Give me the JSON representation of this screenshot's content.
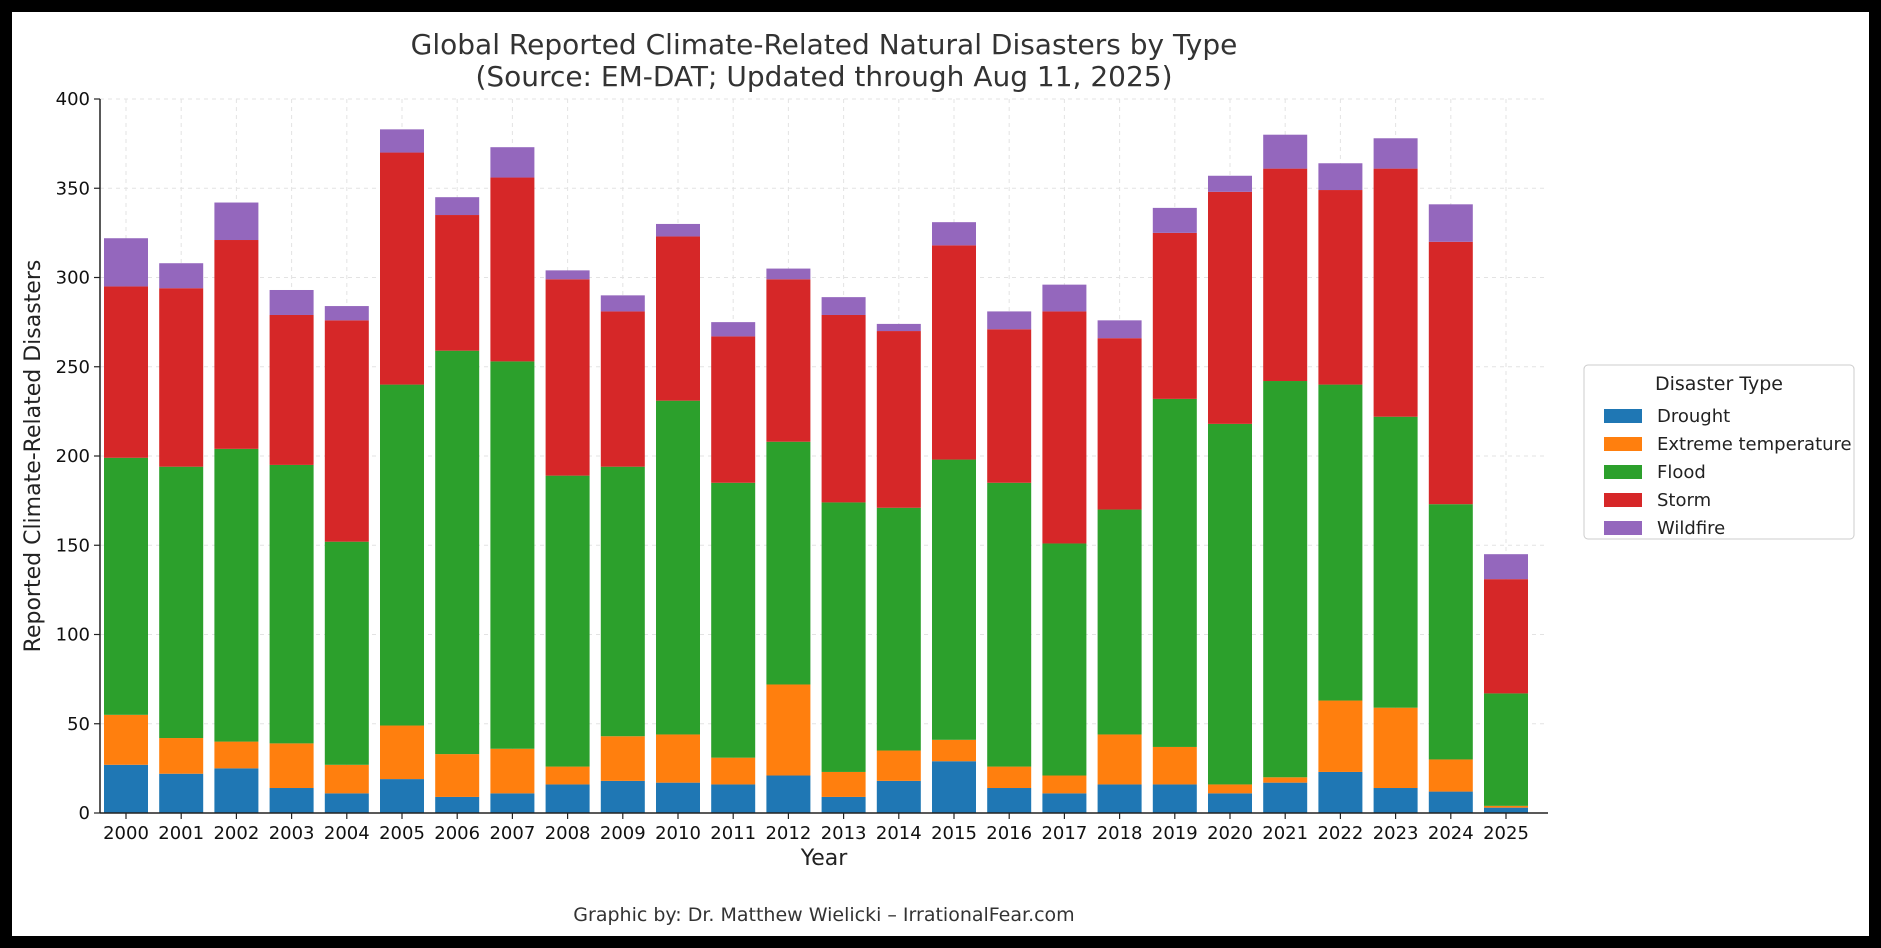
{
  "chart_data": {
    "type": "bar",
    "stacked": true,
    "title_lines": [
      "Global Reported Climate-Related Natural Disasters by Type",
      "(Source: EM-DAT; Updated through Aug 11, 2025)"
    ],
    "xlabel": "Year",
    "ylabel": "Reported Climate-Related Disasters",
    "ylim": [
      0,
      400
    ],
    "yticks": [
      "0",
      "50",
      "100",
      "150",
      "200",
      "250",
      "300",
      "350",
      "400"
    ],
    "grid": true,
    "legend_title": "Disaster Type",
    "legend_placement": "right",
    "categories": [
      "2000",
      "2001",
      "2002",
      "2003",
      "2004",
      "2005",
      "2006",
      "2007",
      "2008",
      "2009",
      "2010",
      "2011",
      "2012",
      "2013",
      "2014",
      "2015",
      "2016",
      "2017",
      "2018",
      "2019",
      "2020",
      "2021",
      "2022",
      "2023",
      "2024",
      "2025"
    ],
    "series": [
      {
        "name": "Drought",
        "color": "#1f77b4",
        "values": [
          27,
          22,
          25,
          14,
          11,
          19,
          9,
          11,
          16,
          18,
          17,
          16,
          21,
          9,
          18,
          29,
          14,
          11,
          16,
          16,
          11,
          17,
          23,
          14,
          12,
          3
        ]
      },
      {
        "name": "Extreme temperature",
        "color": "#ff7f0e",
        "values": [
          28,
          20,
          15,
          25,
          16,
          30,
          24,
          25,
          10,
          25,
          27,
          15,
          51,
          14,
          17,
          12,
          12,
          10,
          28,
          21,
          5,
          3,
          40,
          45,
          18,
          1
        ]
      },
      {
        "name": "Flood",
        "color": "#2ca02c",
        "values": [
          144,
          152,
          164,
          156,
          125,
          191,
          226,
          217,
          163,
          151,
          187,
          154,
          136,
          151,
          136,
          157,
          159,
          130,
          126,
          195,
          202,
          222,
          177,
          163,
          143,
          63
        ]
      },
      {
        "name": "Storm",
        "color": "#d62728",
        "values": [
          96,
          100,
          117,
          84,
          124,
          130,
          76,
          103,
          110,
          87,
          92,
          82,
          91,
          105,
          99,
          120,
          86,
          130,
          96,
          93,
          130,
          119,
          109,
          139,
          147,
          64
        ]
      },
      {
        "name": "Wildfire",
        "color": "#9467bd",
        "values": [
          27,
          14,
          21,
          14,
          8,
          13,
          10,
          17,
          5,
          9,
          7,
          8,
          6,
          10,
          4,
          13,
          10,
          15,
          10,
          14,
          9,
          19,
          15,
          17,
          21,
          14
        ]
      }
    ]
  },
  "footer": {
    "credit": "Graphic by: Dr. Matthew Wielicki – IrrationalFear.com"
  }
}
